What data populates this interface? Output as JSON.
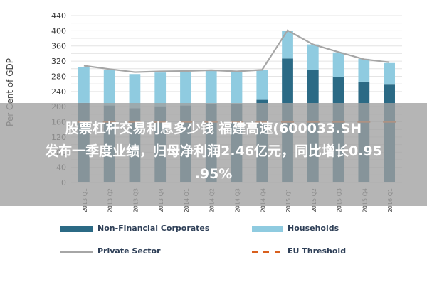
{
  "chart_data": {
    "type": "bar",
    "ylabel": "Per Cent of GDP",
    "ylim": [
      0,
      440
    ],
    "yticks": [
      0,
      20,
      40,
      60,
      80,
      100,
      120,
      140,
      160,
      180,
      200,
      220,
      240,
      260,
      280,
      300,
      320,
      340,
      360,
      380,
      400,
      420,
      440
    ],
    "categories": [
      "2013 Q1",
      "2013 Q2",
      "2013 Q3",
      "2013 Q4",
      "2014 Q1",
      "2014 Q2",
      "2014 Q3",
      "2014 Q4",
      "2015 Q1",
      "2015 Q2",
      "2015 Q3",
      "2015 Q4",
      "2016 Q1"
    ],
    "series": [
      {
        "name": "Non-Financial Corporates",
        "type": "bar",
        "color": "#2b6a85",
        "values": [
          210,
          203,
          196,
          201,
          203,
          208,
          208,
          218,
          327,
          296,
          278,
          266,
          258
        ]
      },
      {
        "name": "Households",
        "type": "bar",
        "color": "#8fcbe0",
        "values": [
          95,
          93,
          90,
          89,
          89,
          88,
          85,
          78,
          72,
          68,
          65,
          60,
          57
        ]
      },
      {
        "name": "Private Sector",
        "type": "line",
        "color": "#a6a6a6",
        "values": [
          308,
          299,
          291,
          293,
          294,
          296,
          293,
          297,
          401,
          364,
          344,
          325,
          317
        ]
      },
      {
        "name": "EU Threshold",
        "type": "line",
        "color": "#d9601e",
        "values": [
          160,
          160,
          160,
          160,
          160,
          160,
          160,
          160,
          160,
          160,
          160,
          160,
          160
        ]
      }
    ],
    "grid": true,
    "legend_position": "bottom"
  },
  "overlay": {
    "line1": "股票杠杆交易利息多少钱 福建高速(600033.SH",
    "line2": "发布一季度业绩，归母净利润2.46亿元，同比增长0.95",
    "line3": ".95%"
  }
}
